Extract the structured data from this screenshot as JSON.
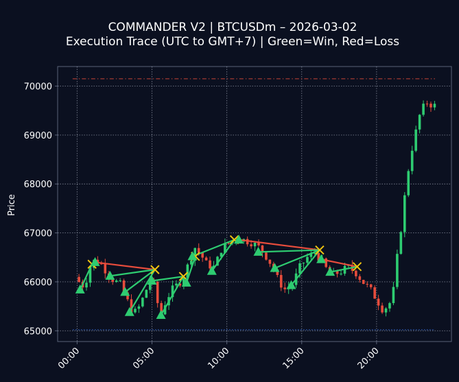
{
  "chart_data": {
    "type": "candlestick",
    "title": "COMMANDER V2 | BTCUSDm – 2026-03-02",
    "subtitle": "Execution Trace (UTC to GMT+7) | Green=Win, Red=Loss",
    "ylabel": "Price",
    "xlabel": "",
    "xlim": [
      -1.3,
      25.0
    ],
    "ylim": [
      64780,
      70400
    ],
    "x_ticks": [
      {
        "value": 0,
        "label": "00:00"
      },
      {
        "value": 5,
        "label": "05:00"
      },
      {
        "value": 10,
        "label": "10:00"
      },
      {
        "value": 15,
        "label": "15:00"
      },
      {
        "value": 20,
        "label": "20:00"
      }
    ],
    "y_ticks": [
      {
        "value": 65000,
        "label": "65000"
      },
      {
        "value": 66000,
        "label": "66000"
      },
      {
        "value": 67000,
        "label": "67000"
      },
      {
        "value": 68000,
        "label": "68000"
      },
      {
        "value": 69000,
        "label": "69000"
      },
      {
        "value": 70000,
        "label": "70000"
      }
    ],
    "grid": true,
    "colors": {
      "background": "#0b1020",
      "up": "#2ecc71",
      "down": "#e74c3c",
      "grid": "#c8cfe0",
      "spine": "#5a6278",
      "entry_marker": "#2ecc71",
      "exit_marker": "#f1c40f",
      "high_line": "#e74c3c",
      "low_line": "#3b6fd8"
    },
    "reference_lines": [
      {
        "name": "high",
        "value": 70150,
        "x": [
          -0.3,
          23.9
        ]
      },
      {
        "name": "low",
        "value": 65020,
        "x": [
          -0.3,
          23.9
        ]
      }
    ],
    "price_path": [
      [
        0.0,
        66100
      ],
      [
        0.3,
        65980
      ],
      [
        0.6,
        65900
      ],
      [
        1.0,
        66300
      ],
      [
        1.3,
        66450
      ],
      [
        1.7,
        66380
      ],
      [
        2.1,
        66200
      ],
      [
        2.5,
        66050
      ],
      [
        3.0,
        65950
      ],
      [
        3.5,
        65600
      ],
      [
        3.9,
        65350
      ],
      [
        4.3,
        65500
      ],
      [
        4.7,
        65800
      ],
      [
        5.1,
        66150
      ],
      [
        5.4,
        65700
      ],
      [
        5.7,
        65300
      ],
      [
        6.1,
        65650
      ],
      [
        6.5,
        65850
      ],
      [
        7.0,
        66000
      ],
      [
        7.3,
        66150
      ],
      [
        7.6,
        66400
      ],
      [
        8.0,
        66700
      ],
      [
        8.4,
        66550
      ],
      [
        8.8,
        66350
      ],
      [
        9.3,
        66300
      ],
      [
        9.8,
        66700
      ],
      [
        10.3,
        66800
      ],
      [
        10.8,
        66900
      ],
      [
        11.3,
        66850
      ],
      [
        11.8,
        66800
      ],
      [
        12.3,
        66700
      ],
      [
        12.8,
        66500
      ],
      [
        13.2,
        66300
      ],
      [
        13.6,
        66000
      ],
      [
        14.0,
        65850
      ],
      [
        14.5,
        65950
      ],
      [
        15.0,
        66300
      ],
      [
        15.5,
        66500
      ],
      [
        16.0,
        66600
      ],
      [
        16.4,
        66450
      ],
      [
        16.8,
        66250
      ],
      [
        17.2,
        66150
      ],
      [
        17.7,
        66200
      ],
      [
        18.2,
        66300
      ],
      [
        18.7,
        66200
      ],
      [
        19.2,
        66000
      ],
      [
        19.7,
        65850
      ],
      [
        20.1,
        65650
      ],
      [
        20.5,
        65450
      ],
      [
        20.9,
        65500
      ],
      [
        21.2,
        65700
      ],
      [
        21.5,
        66500
      ],
      [
        21.8,
        67200
      ],
      [
        22.1,
        68000
      ],
      [
        22.4,
        68600
      ],
      [
        22.7,
        69000
      ],
      [
        23.0,
        69400
      ],
      [
        23.3,
        69600
      ],
      [
        23.6,
        69700
      ],
      [
        23.8,
        69600
      ]
    ],
    "trades": [
      {
        "result": "win",
        "entry": [
          0.2,
          65840
        ],
        "exit": [
          1.0,
          66360
        ]
      },
      {
        "result": "loss",
        "entry": [
          1.2,
          66400
        ],
        "exit": [
          5.2,
          66250
        ]
      },
      {
        "result": "win",
        "entry": [
          2.2,
          66120
        ],
        "exit": [
          5.2,
          66250
        ]
      },
      {
        "result": "win",
        "entry": [
          3.2,
          65790
        ],
        "exit": [
          5.2,
          66250
        ]
      },
      {
        "result": "win",
        "entry": [
          3.5,
          65380
        ],
        "exit": [
          5.2,
          66250
        ]
      },
      {
        "result": "win",
        "entry": [
          5.0,
          66020
        ],
        "exit": [
          7.1,
          66110
        ]
      },
      {
        "result": "win",
        "entry": [
          5.6,
          65320
        ],
        "exit": [
          7.1,
          66110
        ]
      },
      {
        "result": "win",
        "entry": [
          7.3,
          65980
        ],
        "exit": [
          7.9,
          66520
        ]
      },
      {
        "result": "win",
        "entry": [
          7.7,
          66520
        ],
        "exit": [
          10.5,
          66860
        ]
      },
      {
        "result": "win",
        "entry": [
          9.0,
          66220
        ],
        "exit": [
          10.5,
          66860
        ]
      },
      {
        "result": "loss",
        "entry": [
          10.8,
          66860
        ],
        "exit": [
          16.2,
          66650
        ]
      },
      {
        "result": "win",
        "entry": [
          12.1,
          66610
        ],
        "exit": [
          16.2,
          66650
        ]
      },
      {
        "result": "win",
        "entry": [
          13.2,
          66280
        ],
        "exit": [
          16.2,
          66650
        ]
      },
      {
        "result": "win",
        "entry": [
          14.3,
          65930
        ],
        "exit": [
          16.2,
          66650
        ]
      },
      {
        "result": "loss",
        "entry": [
          16.3,
          66460
        ],
        "exit": [
          18.7,
          66310
        ]
      },
      {
        "result": "win",
        "entry": [
          16.9,
          66200
        ],
        "exit": [
          18.7,
          66310
        ]
      }
    ]
  }
}
